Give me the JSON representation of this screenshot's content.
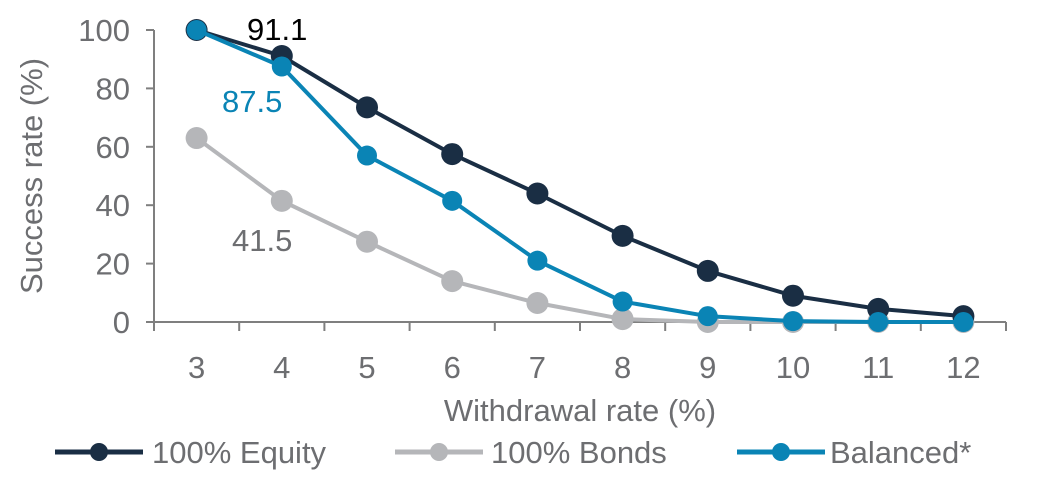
{
  "chart_data": {
    "type": "line",
    "title": "",
    "xlabel": "Withdrawal rate (%)",
    "ylabel": "Success rate (%)",
    "x": [
      3,
      4,
      5,
      6,
      7,
      8,
      9,
      10,
      11,
      12
    ],
    "ylim": [
      0,
      100
    ],
    "yticks": [
      0,
      20,
      40,
      60,
      80,
      100
    ],
    "grid": false,
    "legend_position": "bottom",
    "series": [
      {
        "name": "100% Equity",
        "color": "#1a2e44",
        "values": [
          100,
          91.1,
          73.5,
          57.5,
          44,
          29.5,
          17.5,
          9,
          4.5,
          2
        ]
      },
      {
        "name": "100% Bonds",
        "color": "#b5b6b9",
        "values": [
          63,
          41.5,
          27.5,
          14,
          6.5,
          1,
          0,
          0,
          0,
          0
        ]
      },
      {
        "name": "Balanced*",
        "color": "#0a84b5",
        "values": [
          100,
          87.5,
          57,
          41.5,
          21,
          7,
          2,
          0.3,
          0,
          0
        ]
      }
    ],
    "annotations": [
      {
        "text": "91.1",
        "series": "100% Equity",
        "x": 4,
        "color": "#000000"
      },
      {
        "text": "87.5",
        "series": "Balanced*",
        "x": 4,
        "color": "#0a84b5"
      },
      {
        "text": "41.5",
        "series": "100% Bonds",
        "x": 4,
        "color": "#6d6e71"
      }
    ]
  },
  "axis": {
    "x_label": "Withdrawal rate (%)",
    "y_label": "Success rate (%)",
    "x_ticks": [
      "3",
      "4",
      "5",
      "6",
      "7",
      "8",
      "9",
      "10",
      "11",
      "12"
    ],
    "y_ticks": [
      "0",
      "20",
      "40",
      "60",
      "80",
      "100"
    ]
  },
  "legend": {
    "items": [
      {
        "label": "100% Equity",
        "color": "#1a2e44"
      },
      {
        "label": "100% Bonds",
        "color": "#b5b6b9"
      },
      {
        "label": "Balanced*",
        "color": "#0a84b5"
      }
    ]
  },
  "labels": {
    "equity_4": "91.1",
    "balanced_4": "87.5",
    "bonds_4": "41.5"
  }
}
